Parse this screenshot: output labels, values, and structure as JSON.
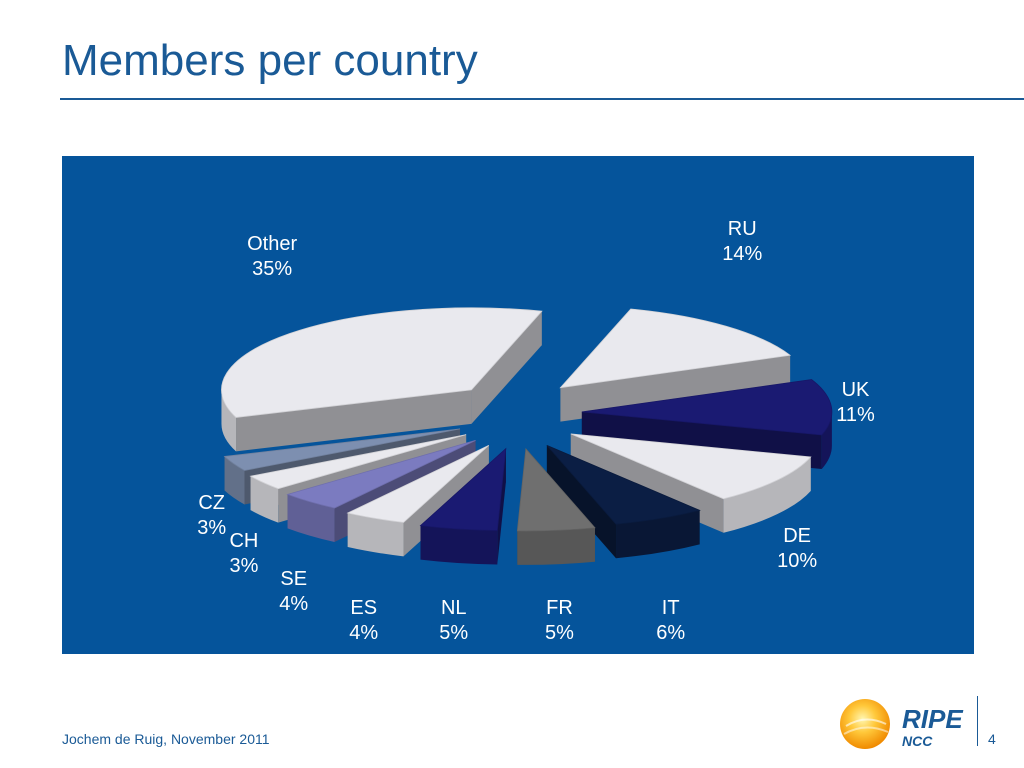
{
  "slide": {
    "title": "Members per country",
    "footer": "Jochem de Ruig, November 2011",
    "page_number": "4",
    "logo": {
      "main": "RIPE",
      "sub": "NCC"
    }
  },
  "colors": {
    "title": "#1a5a96",
    "panel": "#05549b",
    "label": "#ffffff",
    "light": "#e9e9ee",
    "dark_gray": "#6f6f6f",
    "navy": "#1a1a72",
    "periwinkle": "#7b7bc0",
    "slate": "#7d8fb0",
    "dark_navy": "#0b1e44"
  },
  "chart_data": {
    "type": "pie",
    "title": "",
    "exploded": true,
    "style": "3d",
    "series": [
      {
        "name": "",
        "slices": [
          {
            "label": "RU",
            "percent_label": "14%",
            "value": 14,
            "color": "#e9e9ee"
          },
          {
            "label": "UK",
            "percent_label": "11%",
            "value": 11,
            "color": "#1a1a72"
          },
          {
            "label": "DE",
            "percent_label": "10%",
            "value": 10,
            "color": "#e9e9ee"
          },
          {
            "label": "IT",
            "percent_label": "6%",
            "value": 6,
            "color": "#0b1e44"
          },
          {
            "label": "FR",
            "percent_label": "5%",
            "value": 5,
            "color": "#6f6f6f"
          },
          {
            "label": "NL",
            "percent_label": "5%",
            "value": 5,
            "color": "#1a1a72"
          },
          {
            "label": "ES",
            "percent_label": "4%",
            "value": 4,
            "color": "#e9e9ee"
          },
          {
            "label": "SE",
            "percent_label": "4%",
            "value": 4,
            "color": "#7b7bc0"
          },
          {
            "label": "CH",
            "percent_label": "3%",
            "value": 3,
            "color": "#e9e9ee"
          },
          {
            "label": "CZ",
            "percent_label": "3%",
            "value": 3,
            "color": "#7d8fb0"
          },
          {
            "label": "Other",
            "percent_label": "35%",
            "value": 35,
            "color": "#e9e9ee"
          }
        ]
      }
    ]
  }
}
